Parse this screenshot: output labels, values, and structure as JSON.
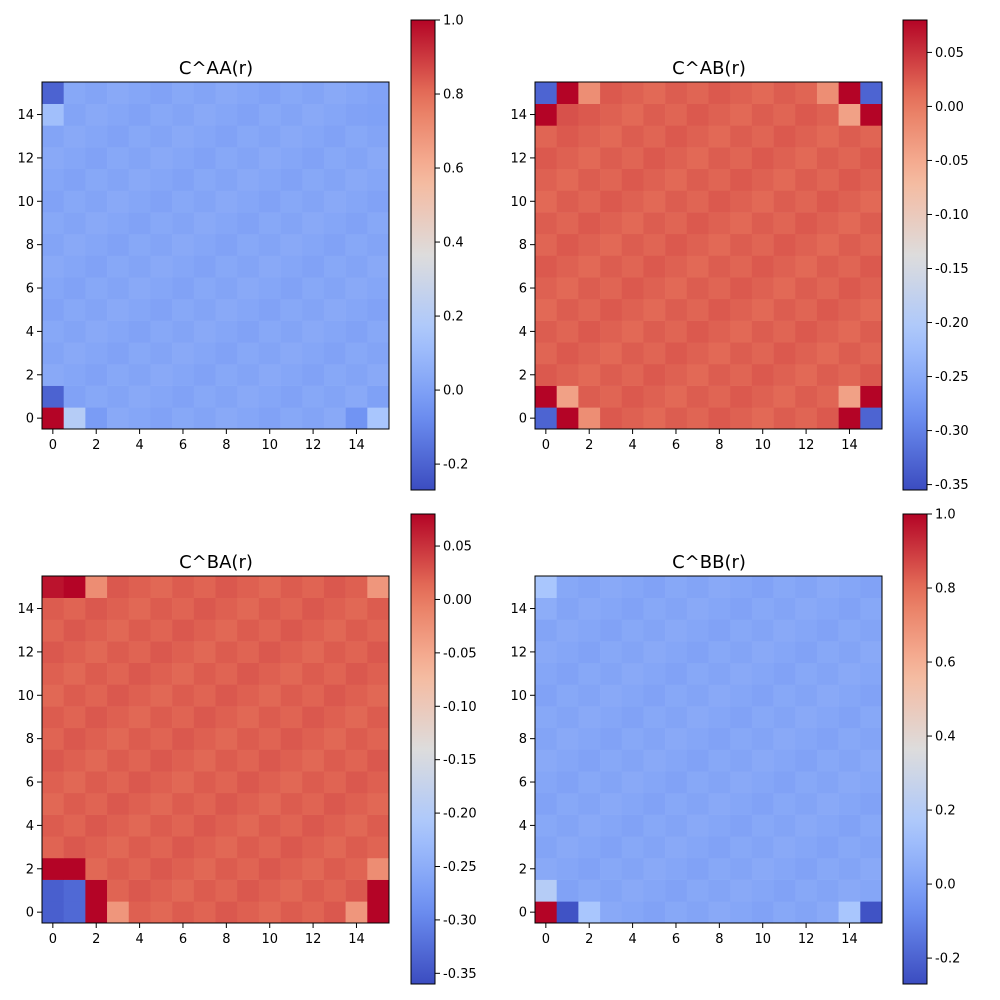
{
  "figure": {
    "background": "#ffffff"
  },
  "colormap": {
    "name": "coolwarm",
    "stops": [
      "#3b4cc0",
      "#6f92f3",
      "#aac7fd",
      "#dddcdc",
      "#f7b89c",
      "#e7745b",
      "#b40426"
    ]
  },
  "chart_data": [
    {
      "type": "heatmap",
      "title": "C^AA(r)",
      "x_ticks": [
        "0",
        "2",
        "4",
        "6",
        "8",
        "10",
        "12",
        "14"
      ],
      "y_ticks": [
        "0",
        "2",
        "4",
        "6",
        "8",
        "10",
        "12",
        "14"
      ],
      "grid_size": 16,
      "clim": [
        -0.27,
        1.0
      ],
      "colorbar_ticks": [
        "-0.2",
        "0.0",
        "0.2",
        "0.4",
        "0.6",
        "0.8",
        "1.0"
      ],
      "base_value": 0.02,
      "overrides": [
        [
          0,
          0,
          1.0
        ],
        [
          1,
          0,
          0.2
        ],
        [
          2,
          0,
          -0.02
        ],
        [
          14,
          0,
          -0.05
        ],
        [
          15,
          0,
          0.15
        ],
        [
          0,
          1,
          -0.2
        ],
        [
          0,
          14,
          0.12
        ],
        [
          0,
          15,
          -0.2
        ],
        [
          15,
          1,
          0.0
        ],
        [
          15,
          14,
          0.0
        ]
      ]
    },
    {
      "type": "heatmap",
      "title": "C^AB(r)",
      "x_ticks": [
        "0",
        "2",
        "4",
        "6",
        "8",
        "10",
        "12",
        "14"
      ],
      "y_ticks": [
        "0",
        "2",
        "4",
        "6",
        "8",
        "10",
        "12",
        "14"
      ],
      "grid_size": 16,
      "clim": [
        -0.355,
        0.08
      ],
      "colorbar_ticks": [
        "-0.35",
        "-0.30",
        "-0.25",
        "-0.20",
        "-0.15",
        "-0.10",
        "-0.05",
        "0.00",
        "0.05"
      ],
      "base_value": 0.02,
      "overrides": [
        [
          0,
          0,
          -0.33
        ],
        [
          1,
          0,
          0.08
        ],
        [
          2,
          0,
          -0.02
        ],
        [
          14,
          0,
          0.08
        ],
        [
          15,
          0,
          -0.33
        ],
        [
          0,
          1,
          0.08
        ],
        [
          1,
          1,
          -0.04
        ],
        [
          14,
          1,
          -0.04
        ],
        [
          15,
          1,
          0.08
        ],
        [
          0,
          14,
          0.08
        ],
        [
          1,
          14,
          0.03
        ],
        [
          14,
          14,
          -0.04
        ],
        [
          15,
          14,
          0.08
        ],
        [
          0,
          15,
          -0.33
        ],
        [
          1,
          15,
          0.08
        ],
        [
          2,
          15,
          -0.02
        ],
        [
          13,
          15,
          -0.02
        ],
        [
          14,
          15,
          0.08
        ],
        [
          15,
          15,
          -0.33
        ]
      ]
    },
    {
      "type": "heatmap",
      "title": "C^BA(r)",
      "x_ticks": [
        "0",
        "2",
        "4",
        "6",
        "8",
        "10",
        "12",
        "14"
      ],
      "y_ticks": [
        "0",
        "2",
        "4",
        "6",
        "8",
        "10",
        "12",
        "14"
      ],
      "grid_size": 16,
      "clim": [
        -0.36,
        0.08
      ],
      "colorbar_ticks": [
        "-0.35",
        "-0.30",
        "-0.25",
        "-0.20",
        "-0.15",
        "-0.10",
        "-0.05",
        "0.00",
        "0.05"
      ],
      "base_value": 0.02,
      "overrides": [
        [
          0,
          0,
          -0.34
        ],
        [
          1,
          0,
          -0.33
        ],
        [
          2,
          0,
          0.08
        ],
        [
          3,
          0,
          -0.03
        ],
        [
          14,
          0,
          -0.03
        ],
        [
          15,
          0,
          0.08
        ],
        [
          0,
          1,
          -0.34
        ],
        [
          1,
          1,
          -0.33
        ],
        [
          2,
          1,
          0.08
        ],
        [
          15,
          1,
          0.08
        ],
        [
          0,
          2,
          0.08
        ],
        [
          1,
          2,
          0.08
        ],
        [
          15,
          2,
          -0.02
        ],
        [
          0,
          15,
          0.07
        ],
        [
          1,
          15,
          0.08
        ],
        [
          2,
          15,
          -0.02
        ],
        [
          15,
          15,
          -0.03
        ]
      ]
    },
    {
      "type": "heatmap",
      "title": "C^BB(r)",
      "x_ticks": [
        "0",
        "2",
        "4",
        "6",
        "8",
        "10",
        "12",
        "14"
      ],
      "y_ticks": [
        "0",
        "2",
        "4",
        "6",
        "8",
        "10",
        "12",
        "14"
      ],
      "grid_size": 16,
      "clim": [
        -0.27,
        1.0
      ],
      "colorbar_ticks": [
        "-0.2",
        "0.0",
        "0.2",
        "0.4",
        "0.6",
        "0.8",
        "1.0"
      ],
      "base_value": 0.02,
      "overrides": [
        [
          0,
          0,
          1.0
        ],
        [
          1,
          0,
          -0.25
        ],
        [
          2,
          0,
          0.15
        ],
        [
          14,
          0,
          0.15
        ],
        [
          15,
          0,
          -0.25
        ],
        [
          0,
          1,
          0.2
        ],
        [
          0,
          15,
          0.15
        ],
        [
          0,
          14,
          0.05
        ]
      ]
    }
  ]
}
